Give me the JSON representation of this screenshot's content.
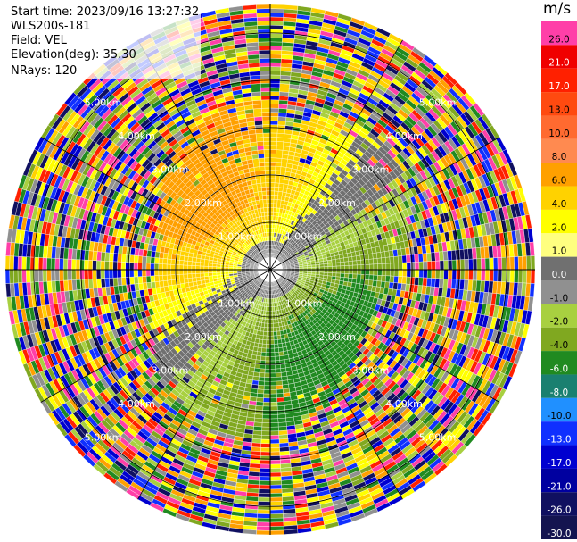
{
  "info": {
    "start_time": "Start time: 2023/09/16 13:27:32",
    "instrument": "WLS200s-181",
    "field": "Field: VEL",
    "elevation": "Elevation(deg): 35.30",
    "nrays": "NRays: 120"
  },
  "colorbar": {
    "unit": "m/s",
    "segments": [
      {
        "label": "26.0",
        "color": "#ff3fa8"
      },
      {
        "label": "21.0",
        "color": "#f00000"
      },
      {
        "label": "17.0",
        "color": "#ff2000"
      },
      {
        "label": "13.0",
        "color": "#ff4a10"
      },
      {
        "label": "10.0",
        "color": "#ff6a30"
      },
      {
        "label": "8.0",
        "color": "#ff8a50"
      },
      {
        "label": "6.0",
        "color": "#ffa000"
      },
      {
        "label": "4.0",
        "color": "#ffd200"
      },
      {
        "label": "2.0",
        "color": "#ffff00"
      },
      {
        "label": "1.0",
        "color": "#ffff80"
      },
      {
        "label": "0.0",
        "color": "#707070"
      },
      {
        "label": "-1.0",
        "color": "#909090"
      },
      {
        "label": "-2.0",
        "color": "#a8d040"
      },
      {
        "label": "-4.0",
        "color": "#80a820"
      },
      {
        "label": "-6.0",
        "color": "#208a20"
      },
      {
        "label": "-8.0",
        "color": "#1a8070"
      },
      {
        "label": "-10.0",
        "color": "#2090ff"
      },
      {
        "label": "-13.0",
        "color": "#1030ff"
      },
      {
        "label": "-17.0",
        "color": "#0000d0"
      },
      {
        "label": "-21.0",
        "color": "#0000a0"
      },
      {
        "label": "-26.0",
        "color": "#101060"
      },
      {
        "label": "-30.0",
        "color": "#141450"
      }
    ]
  },
  "chart_data": {
    "type": "heatmap",
    "projection": "polar-ppi",
    "rays": 120,
    "field": "VEL",
    "elevation_deg": 35.3,
    "range_rings_km": [
      "1.00km",
      "2.00km",
      "3.00km",
      "4.00km",
      "5.00km"
    ],
    "ring_values_km": [
      1,
      2,
      3,
      4,
      5
    ],
    "max_range_km": 5.6,
    "pattern": "Near-range (< ~2.5 km): positive velocities (yellow/orange) toward north and west, negative velocities (green) toward south and east, grey near-zero band in the center; far range dominated by noisy multi-color gates.",
    "grid": true
  }
}
